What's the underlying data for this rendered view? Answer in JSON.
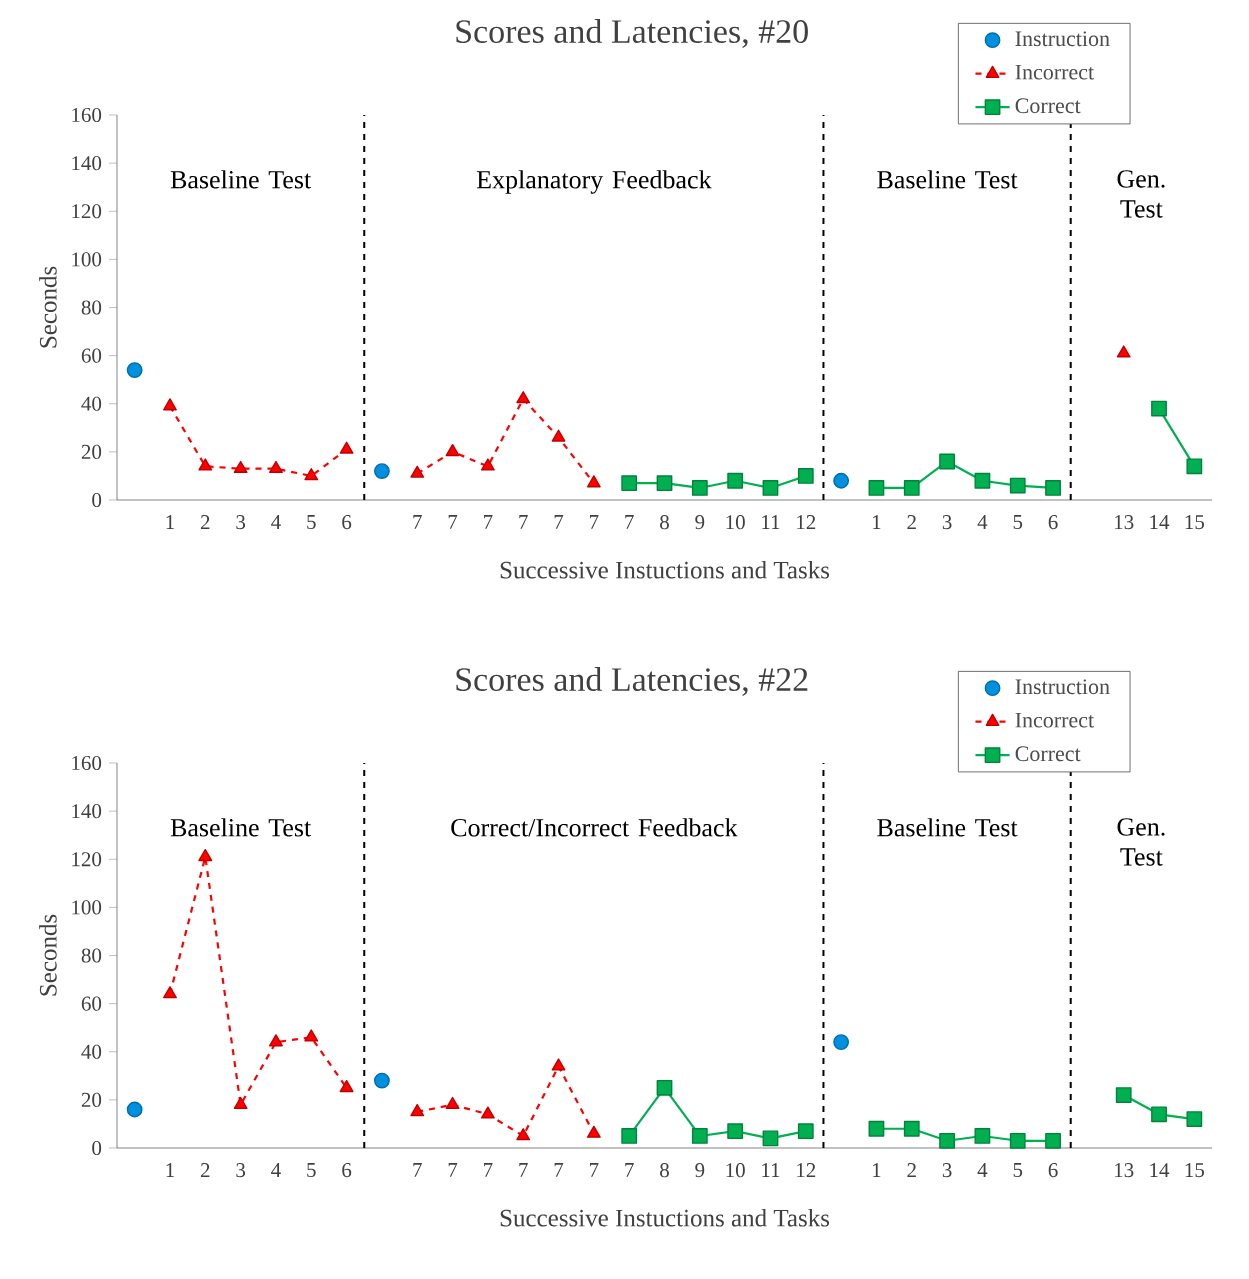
{
  "chart_data": [
    {
      "type": "line",
      "title": "Scores and Latencies, #20",
      "xlabel": "Successive Instuctions and Tasks",
      "ylabel": "Seconds",
      "categories": [
        null,
        "1",
        "2",
        "3",
        "4",
        "5",
        "6",
        null,
        "7",
        "7",
        "7",
        "7",
        "7",
        "7",
        "7",
        "8",
        "9",
        "10",
        "11",
        "12",
        null,
        "1",
        "2",
        "3",
        "4",
        "5",
        "6",
        null,
        "13",
        "14",
        "15"
      ],
      "ylim": [
        0,
        160
      ],
      "yticks": [
        0,
        20,
        40,
        60,
        80,
        100,
        120,
        140,
        160
      ],
      "legend": "top right",
      "grid": false,
      "series": [
        {
          "name": "Instruction",
          "type": "scatter",
          "color": "#0090e0",
          "marker": "circle",
          "values": [
            54,
            null,
            null,
            null,
            null,
            null,
            null,
            12,
            null,
            null,
            null,
            null,
            null,
            null,
            null,
            null,
            null,
            null,
            null,
            null,
            8,
            null,
            null,
            null,
            null,
            null,
            null,
            null,
            null,
            null,
            null
          ]
        },
        {
          "name": "Incorrect",
          "color": "#ff0000",
          "marker": "triangle",
          "line_style": "dashed",
          "values": [
            null,
            39,
            14,
            13,
            13,
            10,
            21,
            null,
            11,
            20,
            14,
            42,
            26,
            7,
            null,
            null,
            null,
            null,
            null,
            null,
            null,
            null,
            null,
            null,
            null,
            null,
            null,
            null,
            61,
            null,
            null
          ]
        },
        {
          "name": "Correct",
          "color": "#00b050",
          "marker": "square",
          "line_style": "solid",
          "values": [
            null,
            null,
            null,
            null,
            null,
            null,
            null,
            null,
            null,
            null,
            null,
            null,
            null,
            null,
            7,
            7,
            5,
            8,
            5,
            10,
            null,
            5,
            5,
            16,
            8,
            6,
            5,
            null,
            null,
            38,
            14
          ]
        }
      ],
      "annotations": [
        "Baseline Test",
        "Explanatory Feedback",
        "Baseline Test",
        "Gen. Test"
      ]
    },
    {
      "type": "line",
      "title": "Scores and Latencies, #22",
      "xlabel": "Successive Instuctions and Tasks",
      "ylabel": "Seconds",
      "categories": [
        null,
        "1",
        "2",
        "3",
        "4",
        "5",
        "6",
        null,
        "7",
        "7",
        "7",
        "7",
        "7",
        "7",
        "7",
        "8",
        "9",
        "10",
        "11",
        "12",
        null,
        "1",
        "2",
        "3",
        "4",
        "5",
        "6",
        null,
        "13",
        "14",
        "15"
      ],
      "ylim": [
        0,
        160
      ],
      "yticks": [
        0,
        20,
        40,
        60,
        80,
        100,
        120,
        140,
        160
      ],
      "legend": "top right",
      "grid": false,
      "series": [
        {
          "name": "Instruction",
          "type": "scatter",
          "color": "#0090e0",
          "marker": "circle",
          "values": [
            16,
            null,
            null,
            null,
            null,
            null,
            null,
            28,
            null,
            null,
            null,
            null,
            null,
            null,
            null,
            null,
            null,
            null,
            null,
            null,
            44,
            null,
            null,
            null,
            null,
            null,
            null,
            null,
            null,
            null,
            null
          ]
        },
        {
          "name": "Incorrect",
          "color": "#ff0000",
          "marker": "triangle",
          "line_style": "dashed",
          "values": [
            null,
            64,
            121,
            18,
            44,
            46,
            25,
            null,
            15,
            18,
            14,
            5,
            34,
            6,
            null,
            null,
            null,
            null,
            null,
            null,
            null,
            null,
            null,
            null,
            null,
            null,
            null,
            null,
            null,
            null,
            null
          ]
        },
        {
          "name": "Correct",
          "color": "#00b050",
          "marker": "square",
          "line_style": "solid",
          "values": [
            null,
            null,
            null,
            null,
            null,
            null,
            null,
            null,
            null,
            null,
            null,
            null,
            null,
            null,
            5,
            25,
            5,
            7,
            4,
            7,
            null,
            8,
            8,
            3,
            5,
            3,
            3,
            null,
            22,
            14,
            12
          ]
        }
      ],
      "annotations": [
        "Baseline Test",
        "Correct/Incorrect Feedback",
        "Baseline Test",
        "Gen. Test"
      ]
    }
  ]
}
